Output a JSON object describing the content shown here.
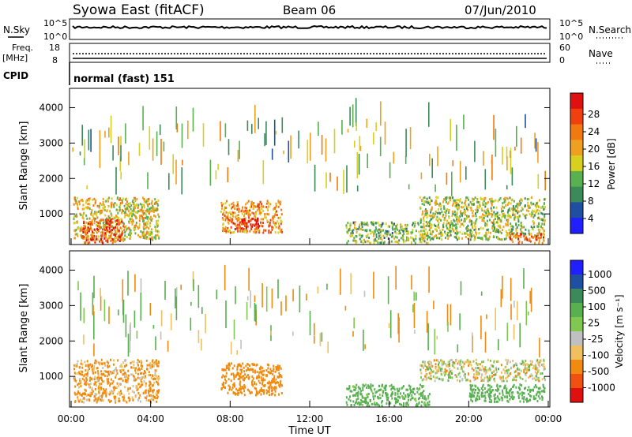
{
  "header": {
    "station": "Syowa East (fitACF)",
    "beam": "Beam 06",
    "date": "07/Jun/2010"
  },
  "params": {
    "nsky_label": "N.Sky",
    "nsearch_label": "N.Search",
    "freq_label": "Freq.",
    "freq_unit": "[MHz]",
    "nave_label": "Nave",
    "cpid_label": "CPID",
    "cpid_value": "normal (fast) 151",
    "noise_ticks_left": [
      "10^5",
      "10^0"
    ],
    "noise_ticks_right": [
      "10^5",
      "10^0"
    ],
    "freq_ticks": [
      "18",
      "8"
    ],
    "nave_ticks": [
      "60",
      "0"
    ]
  },
  "colors": {
    "power_scale": [
      "#1f1fff",
      "#1e4fa0",
      "#3c8a5a",
      "#58b050",
      "#d8d020",
      "#f0a020",
      "#f07a10",
      "#f04010",
      "#e01010"
    ],
    "velocity_scale": [
      "#e01010",
      "#f05010",
      "#f08a10",
      "#f0c060",
      "#c0c0c0",
      "#80c850",
      "#58b050",
      "#3c8a5a",
      "#1e4fa0",
      "#1f1fff"
    ]
  },
  "chart_data": [
    {
      "type": "heatmap",
      "name": "power",
      "ylabel": "Slant Range [km]",
      "yticks": [
        "4000",
        "3000",
        "2000",
        "1000"
      ],
      "ylim": [
        180,
        4500
      ],
      "xlim": [
        "00:00",
        "24:00"
      ],
      "colorbar": {
        "label": "Power [dB]",
        "ticks": [
          "28",
          "24",
          "20",
          "16",
          "12",
          "8",
          "4"
        ],
        "range": [
          0,
          30
        ]
      },
      "regions": [
        {
          "t0": 0.1,
          "t1": 4.4,
          "r0": 300,
          "r1": 1500,
          "level": 16
        },
        {
          "t0": 0.5,
          "t1": 2.6,
          "r0": 200,
          "r1": 900,
          "level": 24
        },
        {
          "t0": 7.5,
          "t1": 10.6,
          "r0": 500,
          "r1": 1400,
          "level": 20
        },
        {
          "t0": 8.0,
          "t1": 9.5,
          "r0": 600,
          "r1": 900,
          "level": 27
        },
        {
          "t0": 13.8,
          "t1": 18.0,
          "r0": 200,
          "r1": 800,
          "level": 12
        },
        {
          "t0": 17.5,
          "t1": 23.8,
          "r0": 300,
          "r1": 1500,
          "level": 14
        },
        {
          "t0": 22.0,
          "t1": 23.8,
          "r0": 200,
          "r1": 500,
          "level": 24
        }
      ]
    },
    {
      "type": "heatmap",
      "name": "velocity",
      "ylabel": "Slant Range [km]",
      "yticks": [
        "4000",
        "3000",
        "2000",
        "1000"
      ],
      "ylim": [
        180,
        4500
      ],
      "xlim": [
        "00:00",
        "24:00"
      ],
      "xticks": [
        "00:00",
        "04:00",
        "08:00",
        "12:00",
        "16:00",
        "20:00",
        "00:00"
      ],
      "xlabel": "Time UT",
      "colorbar": {
        "label": "Velocity [m s⁻¹]",
        "ticks": [
          "1000",
          "500",
          "100",
          "25",
          "-25",
          "-100",
          "-500",
          "-1000"
        ]
      },
      "regions": [
        {
          "t0": 0.1,
          "t1": 4.4,
          "r0": 300,
          "r1": 1500,
          "velocity": -150
        },
        {
          "t0": 7.5,
          "t1": 10.6,
          "r0": 500,
          "r1": 1400,
          "velocity": -300
        },
        {
          "t0": 13.8,
          "t1": 18.0,
          "r0": 200,
          "r1": 800,
          "velocity": 200
        },
        {
          "t0": 17.5,
          "t1": 23.8,
          "r0": 900,
          "r1": 1500,
          "velocity": 0
        },
        {
          "t0": 20.0,
          "t1": 23.8,
          "r0": 300,
          "r1": 800,
          "velocity": 300
        }
      ]
    }
  ]
}
